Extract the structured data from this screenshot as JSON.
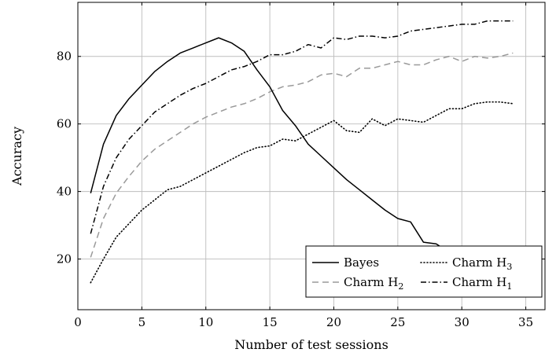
{
  "chart_data": {
    "type": "line",
    "title": "",
    "xlabel": "Number of test sessions",
    "ylabel": "Accuracy",
    "xlim": [
      0,
      36.5
    ],
    "ylim": [
      5,
      96
    ],
    "xticks": [
      0,
      5,
      10,
      15,
      20,
      25,
      30,
      35
    ],
    "yticks": [
      20,
      40,
      60,
      80
    ],
    "grid": true,
    "legend": {
      "placement": "bottom-right",
      "columns": 2,
      "order": [
        "Bayes",
        "Charm H3",
        "Charm H2",
        "Charm H1"
      ]
    },
    "x": [
      1,
      2,
      3,
      4,
      5,
      6,
      7,
      8,
      9,
      10,
      11,
      12,
      13,
      14,
      15,
      16,
      17,
      18,
      19,
      20,
      21,
      22,
      23,
      24,
      25,
      26,
      27,
      28,
      29,
      30,
      31,
      32,
      33,
      34
    ],
    "series": [
      {
        "name": "Bayes",
        "label_base": "Bayes",
        "label_sub": "",
        "style": "solid",
        "color": "#000000",
        "values": [
          39.5,
          54,
          62.5,
          67.5,
          71.5,
          75.5,
          78.5,
          81,
          82.5,
          84,
          85.5,
          84,
          81.5,
          76,
          71,
          64,
          59.5,
          54,
          50.5,
          47,
          43.5,
          40.5,
          37.5,
          34.5,
          32,
          31,
          25,
          24.5,
          22,
          20.5,
          19,
          17.5,
          16.5,
          15.5
        ]
      },
      {
        "name": "Charm H2",
        "label_base": "Charm H",
        "label_sub": "2",
        "style": "dashed",
        "color": "#9a9a9a",
        "values": [
          20.5,
          32,
          39.5,
          44.5,
          49,
          52.5,
          55,
          57.5,
          60,
          62,
          63.5,
          65,
          66,
          67.5,
          69.5,
          71,
          71.5,
          72.5,
          74.5,
          75,
          74,
          76.5,
          76.5,
          77.5,
          78.5,
          77.5,
          77.5,
          79,
          80,
          78.5,
          80,
          79.5,
          80,
          81
        ]
      },
      {
        "name": "Charm H3",
        "label_base": "Charm H",
        "label_sub": "3",
        "style": "dotted",
        "color": "#000000",
        "values": [
          13,
          20,
          26.5,
          30.5,
          34.5,
          37.5,
          40.5,
          41.5,
          43.5,
          45.5,
          47.5,
          49.5,
          51.5,
          53,
          53.5,
          55.5,
          55,
          57,
          59,
          61,
          58,
          57.5,
          61.5,
          59.5,
          61.5,
          61,
          60.5,
          62.5,
          64.5,
          64.5,
          66,
          66.5,
          66.5,
          66
        ]
      },
      {
        "name": "Charm H1",
        "label_base": "Charm H",
        "label_sub": "1",
        "style": "dashdot",
        "color": "#000000",
        "values": [
          27.5,
          41.5,
          50,
          55.5,
          59.5,
          63.5,
          66,
          68.5,
          70.5,
          72,
          74,
          76,
          77,
          78.5,
          80.5,
          80.5,
          81.5,
          83.5,
          82.5,
          85.5,
          85,
          86,
          86,
          85.5,
          86,
          87.5,
          88,
          88.5,
          89,
          89.5,
          89.5,
          90.5,
          90.5,
          90.5
        ]
      }
    ]
  }
}
